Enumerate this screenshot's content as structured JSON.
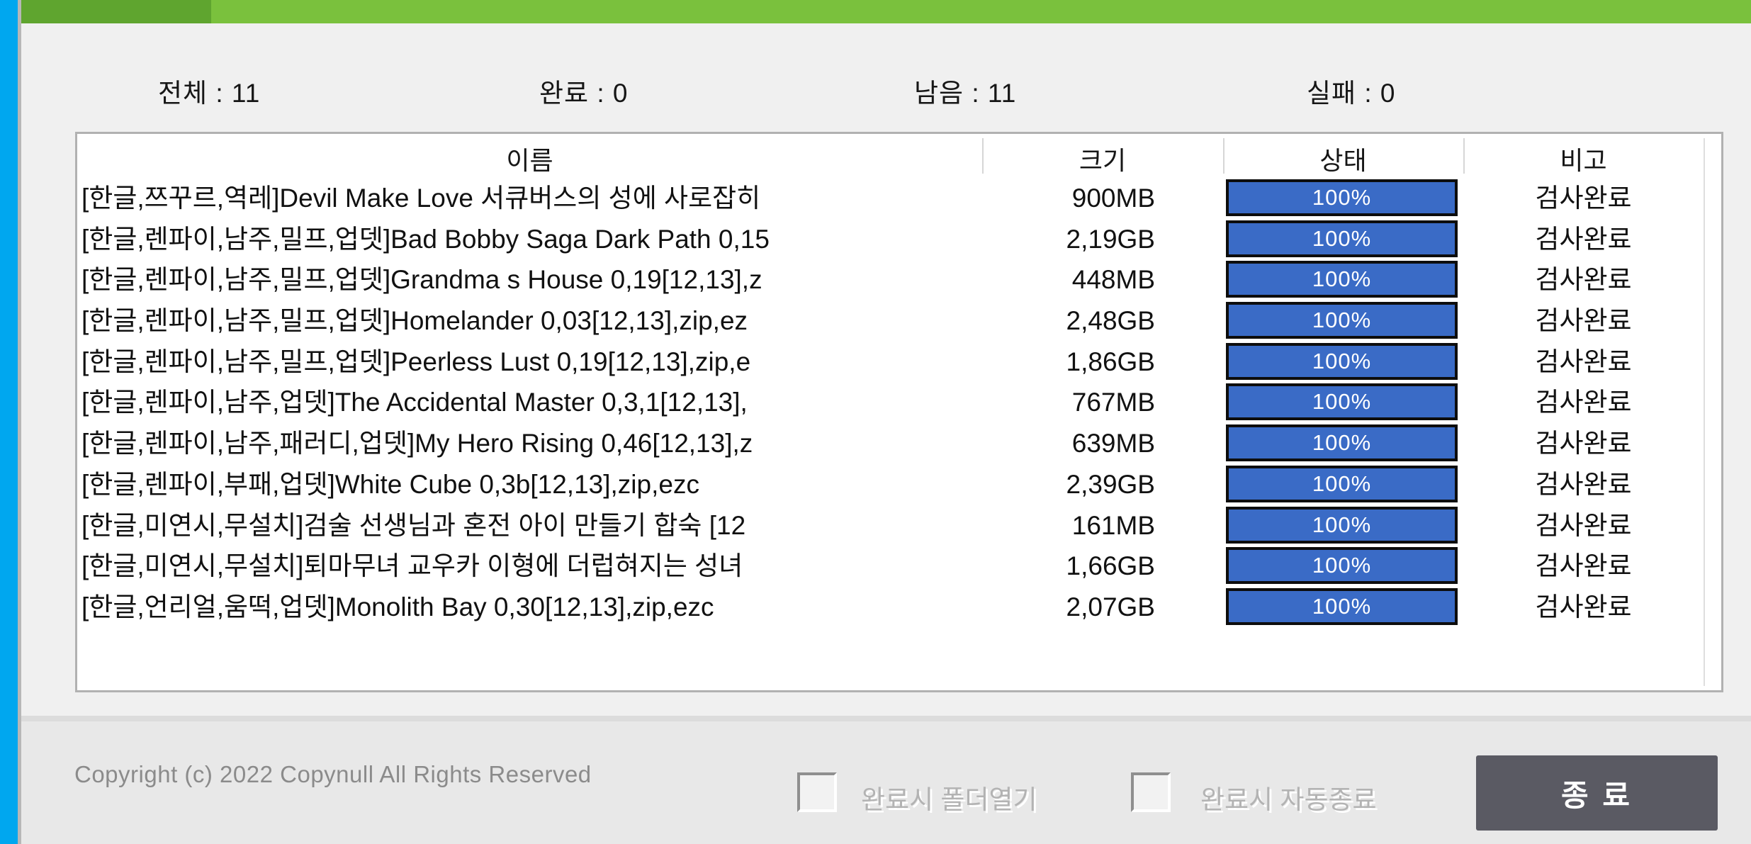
{
  "colors": {
    "accent_stripe_blue": "#00a7ef",
    "topbar_green_light": "#7ac13d",
    "topbar_green_dark": "#5fa52f",
    "progress_fill_blue": "#3a6bc6",
    "window_bg": "#f0f0f0",
    "footer_bg": "#e8e8e8",
    "exit_button_bg": "#5a5a63"
  },
  "stats": {
    "total": "전체 : 11",
    "done": "완료 : 0",
    "remaining": "남음 : 11",
    "failed": "실패 : 0"
  },
  "table": {
    "columns": [
      "이름",
      "크기",
      "상태",
      "비고"
    ],
    "rows": [
      {
        "name": "[한글,쯔꾸르,역레]Devil Make Love 서큐버스의 성에 사로잡히",
        "size": "900MB",
        "progress": "100%",
        "note": "검사완료"
      },
      {
        "name": "[한글,렌파이,남주,밀프,업뎃]Bad Bobby Saga Dark Path 0,15",
        "size": "2,19GB",
        "progress": "100%",
        "note": "검사완료"
      },
      {
        "name": "[한글,렌파이,남주,밀프,업뎃]Grandma s House 0,19[12,13],z",
        "size": "448MB",
        "progress": "100%",
        "note": "검사완료"
      },
      {
        "name": "[한글,렌파이,남주,밀프,업뎃]Homelander 0,03[12,13],zip,ez",
        "size": "2,48GB",
        "progress": "100%",
        "note": "검사완료"
      },
      {
        "name": "[한글,렌파이,남주,밀프,업뎃]Peerless Lust 0,19[12,13],zip,e",
        "size": "1,86GB",
        "progress": "100%",
        "note": "검사완료"
      },
      {
        "name": "[한글,렌파이,남주,업뎃]The Accidental Master 0,3,1[12,13],",
        "size": "767MB",
        "progress": "100%",
        "note": "검사완료"
      },
      {
        "name": "[한글,렌파이,남주,패러디,업뎃]My Hero Rising 0,46[12,13],z",
        "size": "639MB",
        "progress": "100%",
        "note": "검사완료"
      },
      {
        "name": "[한글,렌파이,부패,업뎃]White Cube 0,3b[12,13],zip,ezc",
        "size": "2,39GB",
        "progress": "100%",
        "note": "검사완료"
      },
      {
        "name": "[한글,미연시,무설치]검술 선생님과 혼전 아이 만들기 합숙 [12",
        "size": "161MB",
        "progress": "100%",
        "note": "검사완료"
      },
      {
        "name": "[한글,미연시,무설치]퇴마무녀 교우카 이형에 더럽혀지는 성녀",
        "size": "1,66GB",
        "progress": "100%",
        "note": "검사완료"
      },
      {
        "name": "[한글,언리얼,움떡,업뎃]Monolith Bay 0,30[12,13],zip,ezc",
        "size": "2,07GB",
        "progress": "100%",
        "note": "검사완료"
      }
    ]
  },
  "footer": {
    "copyright": "Copyright (c) 2022 Copynull All Rights Reserved",
    "checkbox_open_folder_label": "완료시 폴더열기",
    "checkbox_auto_exit_label": "완료시 자동종료",
    "exit_button_label": "종 료"
  }
}
